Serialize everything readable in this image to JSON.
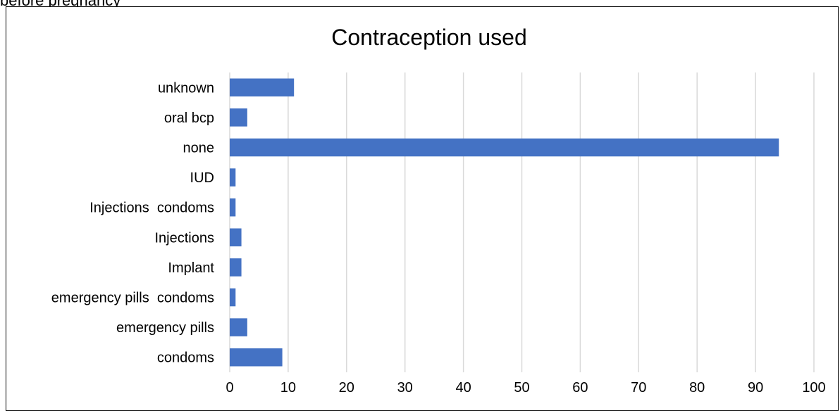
{
  "caption": "before pregnancy",
  "chart_data": {
    "type": "bar",
    "orientation": "horizontal",
    "title": "Contraception used",
    "xlabel": "",
    "ylabel": "",
    "categories": [
      "unknown",
      "oral bcp",
      "none",
      "IUD",
      "Injections  condoms",
      "Injections",
      "Implant",
      "emergency pills  condoms",
      "emergency pills",
      "condoms"
    ],
    "values": [
      11,
      3,
      94,
      1,
      1,
      2,
      2,
      1,
      3,
      9
    ],
    "xlim": [
      0,
      100
    ],
    "ticks": [
      0,
      10,
      20,
      30,
      40,
      50,
      60,
      70,
      80,
      90,
      100
    ],
    "grid": true,
    "legend": "none",
    "bar_color": "#4472C4",
    "grid_color": "#D9D9D9"
  }
}
